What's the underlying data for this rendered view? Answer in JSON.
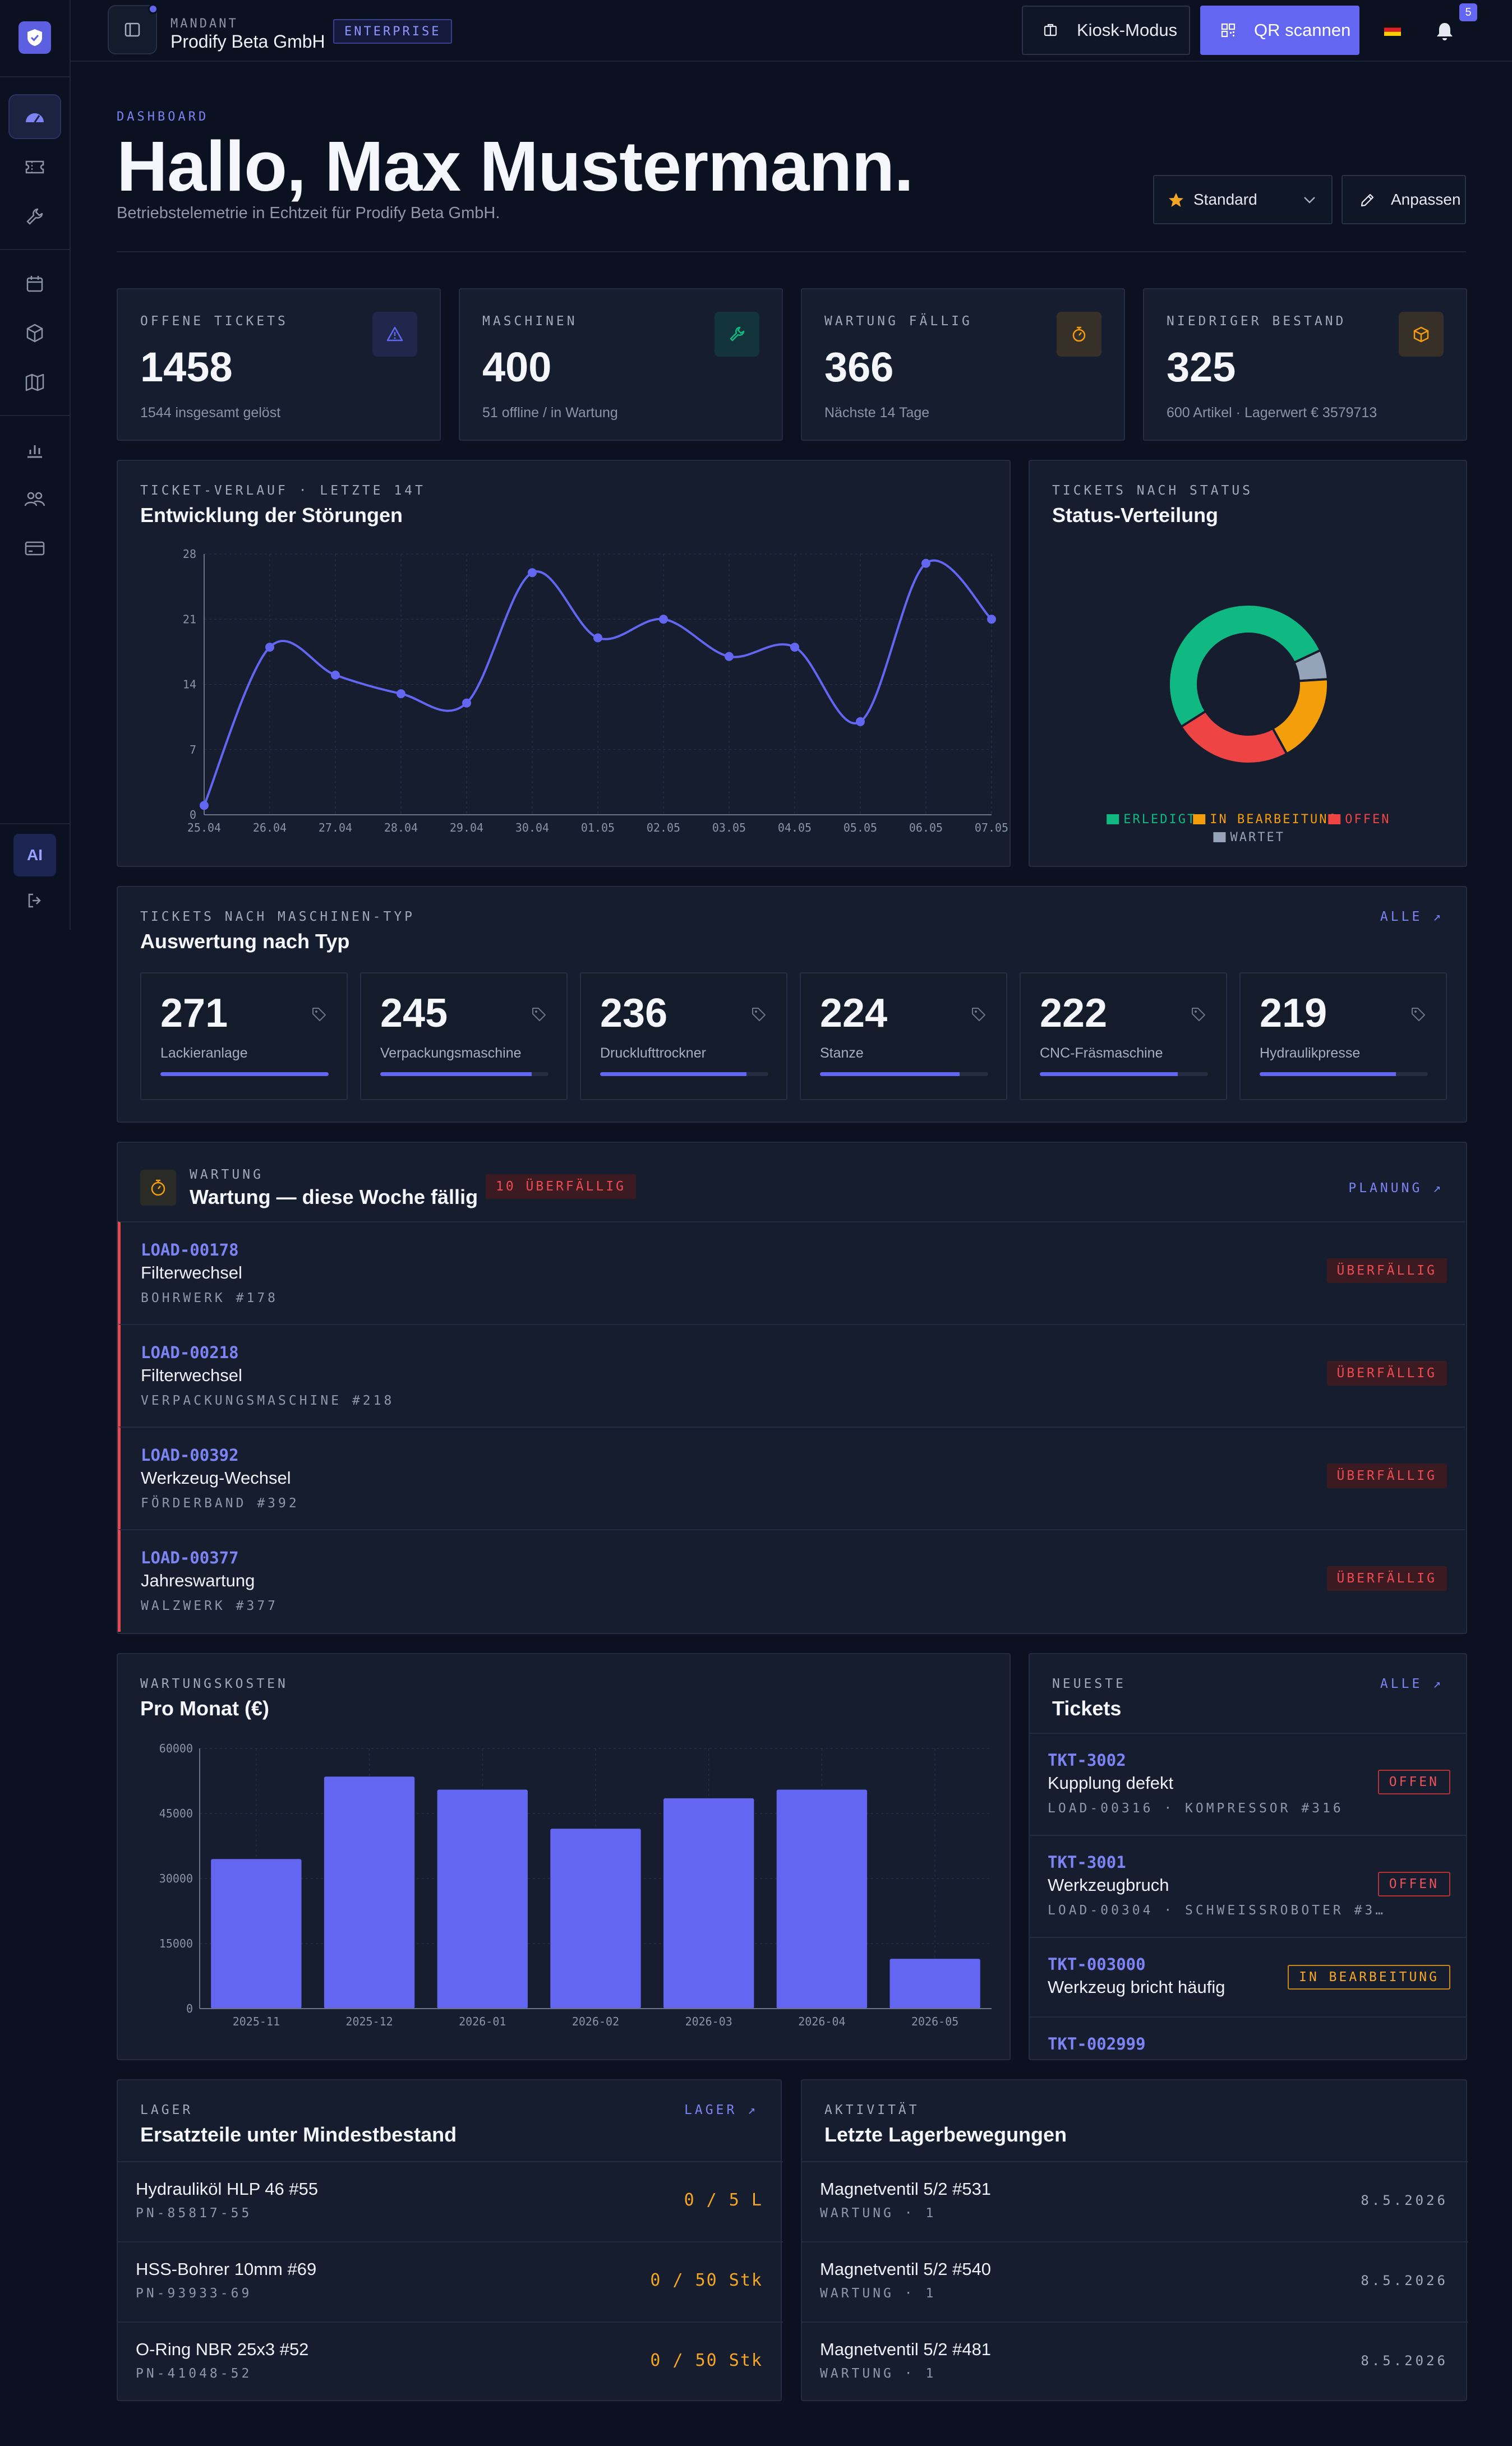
{
  "topbar": {
    "mandant_label": "MANDANT",
    "mandant_name": "Prodify Beta GmbH",
    "plan_badge": "ENTERPRISE",
    "kiosk_label": "Kiosk-Modus",
    "qr_label": "QR scannen",
    "notification_count": "5"
  },
  "header": {
    "eyebrow": "DASHBOARD",
    "greeting": "Hallo, Max Mustermann.",
    "subline": "Betriebstelemetrie in Echtzeit für Prodify Beta GmbH.",
    "view_select": "Standard",
    "customize_label": "Anpassen"
  },
  "sidebar": {
    "ai_label": "AI"
  },
  "kpis": [
    {
      "label": "OFFENE TICKETS",
      "value": "1458",
      "sub": "1544 insgesamt gelöst",
      "icon": "alert-triangle-icon",
      "color": "#6366f1"
    },
    {
      "label": "MASCHINEN",
      "value": "400",
      "sub": "51 offline / in Wartung",
      "icon": "wrench-icon",
      "color": "#10b981"
    },
    {
      "label": "WARTUNG FÄLLIG",
      "value": "366",
      "sub": "Nächste 14 Tage",
      "icon": "stopwatch-icon",
      "color": "#f59e0b"
    },
    {
      "label": "NIEDRIGER BESTAND",
      "value": "325",
      "sub": "600 Artikel · Lagerwert € 3579713",
      "icon": "box-icon",
      "color": "#f59e0b"
    }
  ],
  "ticket_trend": {
    "eyebrow": "TICKET-VERLAUF · LETZTE 14T",
    "title": "Entwicklung der Störungen"
  },
  "status_dist": {
    "eyebrow": "TICKETS NACH STATUS",
    "title": "Status-Verteilung"
  },
  "chart_data": [
    {
      "type": "line",
      "x": [
        "25.04",
        "26.04",
        "27.04",
        "28.04",
        "29.04",
        "30.04",
        "01.05",
        "02.05",
        "03.05",
        "04.05",
        "05.05",
        "06.05",
        "07.05"
      ],
      "values": [
        1,
        18,
        15,
        13,
        12,
        26,
        19,
        21,
        17,
        18,
        10,
        27,
        21
      ],
      "yticks": [
        0,
        7,
        14,
        21,
        28
      ],
      "ylim": [
        0,
        28
      ],
      "grid": true,
      "color": "#6366f1"
    },
    {
      "type": "pie",
      "donut": true,
      "categories": [
        "ERLEDIGT",
        "IN BEARBEITUNG",
        "OFFEN",
        "WARTET"
      ],
      "values": [
        52,
        18,
        24,
        6
      ],
      "colors": [
        "#10b981",
        "#f59e0b",
        "#ef4444",
        "#94a3b8"
      ],
      "legend": "bottom"
    },
    {
      "type": "bar",
      "categories": [
        "2025-11",
        "2025-12",
        "2026-01",
        "2026-02",
        "2026-03",
        "2026-04",
        "2026-05"
      ],
      "values": [
        34500,
        53500,
        50500,
        41500,
        48500,
        50500,
        11500
      ],
      "yticks": [
        0,
        15000,
        30000,
        45000,
        60000
      ],
      "ylim": [
        0,
        60000
      ],
      "grid": true,
      "color": "#6366f1"
    }
  ],
  "by_type": {
    "eyebrow": "TICKETS NACH MASCHINEN-TYP",
    "title": "Auswertung nach Typ",
    "link": "ALLE ↗",
    "items": [
      {
        "value": "271",
        "name": "Lackieranlage",
        "fill": 1.0
      },
      {
        "value": "245",
        "name": "Verpackungsmaschine",
        "fill": 0.9
      },
      {
        "value": "236",
        "name": "Drucklufttrockner",
        "fill": 0.87
      },
      {
        "value": "224",
        "name": "Stanze",
        "fill": 0.83
      },
      {
        "value": "222",
        "name": "CNC-Fräsmaschine",
        "fill": 0.82
      },
      {
        "value": "219",
        "name": "Hydraulikpresse",
        "fill": 0.81
      }
    ]
  },
  "maintenance": {
    "eyebrow": "WARTUNG",
    "title": "Wartung — diese Woche fällig",
    "overdue_badge": "10 ÜBERFÄLLIG",
    "link": "PLANUNG ↗",
    "items": [
      {
        "id": "LOAD-00178",
        "title": "Filterwechsel",
        "machine": "BOHRWERK #178",
        "status": "ÜBERFÄLLIG"
      },
      {
        "id": "LOAD-00218",
        "title": "Filterwechsel",
        "machine": "VERPACKUNGSMASCHINE #218",
        "status": "ÜBERFÄLLIG"
      },
      {
        "id": "LOAD-00392",
        "title": "Werkzeug-Wechsel",
        "machine": "FÖRDERBAND #392",
        "status": "ÜBERFÄLLIG"
      },
      {
        "id": "LOAD-00377",
        "title": "Jahreswartung",
        "machine": "WALZWERK #377",
        "status": "ÜBERFÄLLIG"
      }
    ]
  },
  "costs": {
    "eyebrow": "WARTUNGSKOSTEN",
    "title": "Pro Monat (€)"
  },
  "latest": {
    "eyebrow": "NEUESTE",
    "title": "Tickets",
    "link": "ALLE ↗",
    "items": [
      {
        "id": "TKT-3002",
        "title": "Kupplung defekt",
        "sub": "LOAD-00316 · KOMPRESSOR #316",
        "status": "OFFEN"
      },
      {
        "id": "TKT-3001",
        "title": "Werkzeugbruch",
        "sub": "LOAD-00304 · SCHWEISSROBOTER #3…",
        "status": "OFFEN"
      },
      {
        "id": "TKT-003000",
        "title": "Werkzeug bricht häufig",
        "sub": "",
        "status": "IN BEARBEITUNG"
      },
      {
        "id": "TKT-002999",
        "title": "",
        "sub": "",
        "status": ""
      }
    ]
  },
  "stock": {
    "eyebrow": "LAGER",
    "title": "Ersatzteile unter Mindestbestand",
    "link": "LAGER ↗",
    "items": [
      {
        "name": "Hydrauliköl HLP 46 #55",
        "pn": "PN-85817-55",
        "qty": "0 / 5 L"
      },
      {
        "name": "HSS-Bohrer 10mm #69",
        "pn": "PN-93933-69",
        "qty": "0 / 50 Stk"
      },
      {
        "name": "O-Ring NBR 25x3 #52",
        "pn": "PN-41048-52",
        "qty": "0 / 50 Stk"
      }
    ]
  },
  "activity": {
    "eyebrow": "AKTIVITÄT",
    "title": "Letzte Lagerbewegungen",
    "items": [
      {
        "name": "Magnetventil 5/2 #531",
        "sub": "WARTUNG · 1",
        "date": "8.5.2026"
      },
      {
        "name": "Magnetventil 5/2 #540",
        "sub": "WARTUNG · 1",
        "date": "8.5.2026"
      },
      {
        "name": "Magnetventil 5/2 #481",
        "sub": "WARTUNG · 1",
        "date": "8.5.2026"
      }
    ]
  }
}
